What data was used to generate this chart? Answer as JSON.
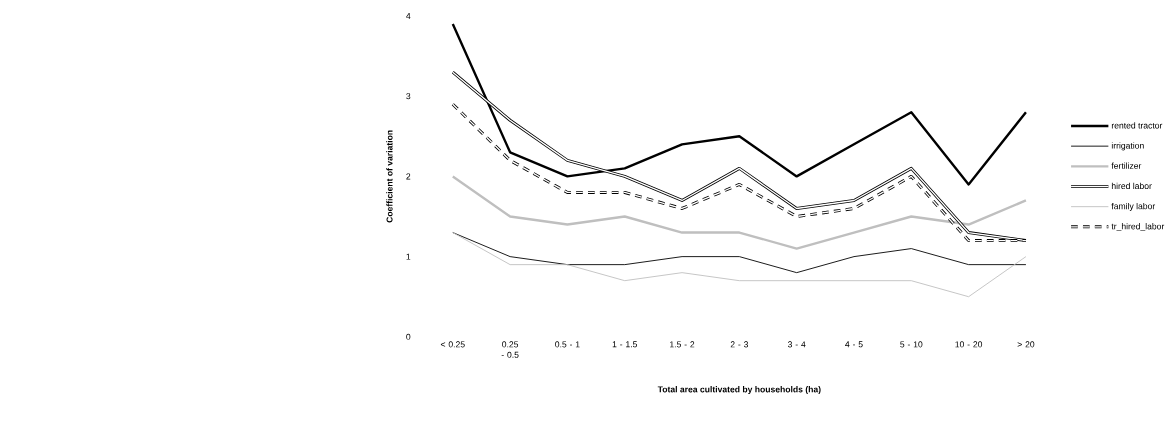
{
  "chart_data": {
    "type": "line",
    "xlabel": "Total area cultivated by households (ha)",
    "ylabel": "Coefficient of variation",
    "categories": [
      "< 0.25",
      "0.25 - 0.5",
      "0.5 - 1",
      "1 - 1.5",
      "1.5 - 2",
      "2 - 3",
      "3 - 4",
      "4 - 5",
      "5 - 10",
      "10 - 20",
      "> 20"
    ],
    "ylim": [
      0,
      4
    ],
    "yticks": [
      0,
      1,
      2,
      3,
      4
    ],
    "legend": "right",
    "series": [
      {
        "name": "rented tractor",
        "color": "#000000",
        "line_style": "solid",
        "values": [
          3.9,
          2.3,
          2.0,
          2.1,
          2.4,
          2.5,
          2.0,
          2.4,
          2.8,
          1.9,
          2.8
        ]
      },
      {
        "name": "irrigation",
        "color": "#000000",
        "line_style": "solid",
        "values": [
          1.3,
          1.0,
          0.9,
          0.9,
          1.0,
          1.0,
          0.8,
          1.0,
          1.1,
          0.9,
          0.9
        ]
      },
      {
        "name": "fertilizer",
        "color": "#bfbfbf",
        "line_style": "solid",
        "values": [
          2.0,
          1.5,
          1.4,
          1.5,
          1.3,
          1.3,
          1.1,
          1.3,
          1.5,
          1.4,
          1.7
        ]
      },
      {
        "name": "hired labor",
        "color": "#000000",
        "line_style": "solid",
        "values": [
          3.3,
          2.7,
          2.2,
          2.0,
          1.7,
          2.1,
          1.6,
          1.7,
          2.1,
          1.3,
          1.2
        ]
      },
      {
        "name": "family labor",
        "color": "#bfbfbf",
        "line_style": "solid",
        "values": [
          1.3,
          0.9,
          0.9,
          0.7,
          0.8,
          0.7,
          0.7,
          0.7,
          0.7,
          0.5,
          1.0
        ]
      },
      {
        "name": "tr_hired_labor",
        "color": "#000000",
        "line_style": "dashed",
        "values": [
          2.9,
          2.2,
          1.8,
          1.8,
          1.6,
          1.9,
          1.5,
          1.6,
          2.0,
          1.2,
          1.2
        ]
      }
    ]
  }
}
